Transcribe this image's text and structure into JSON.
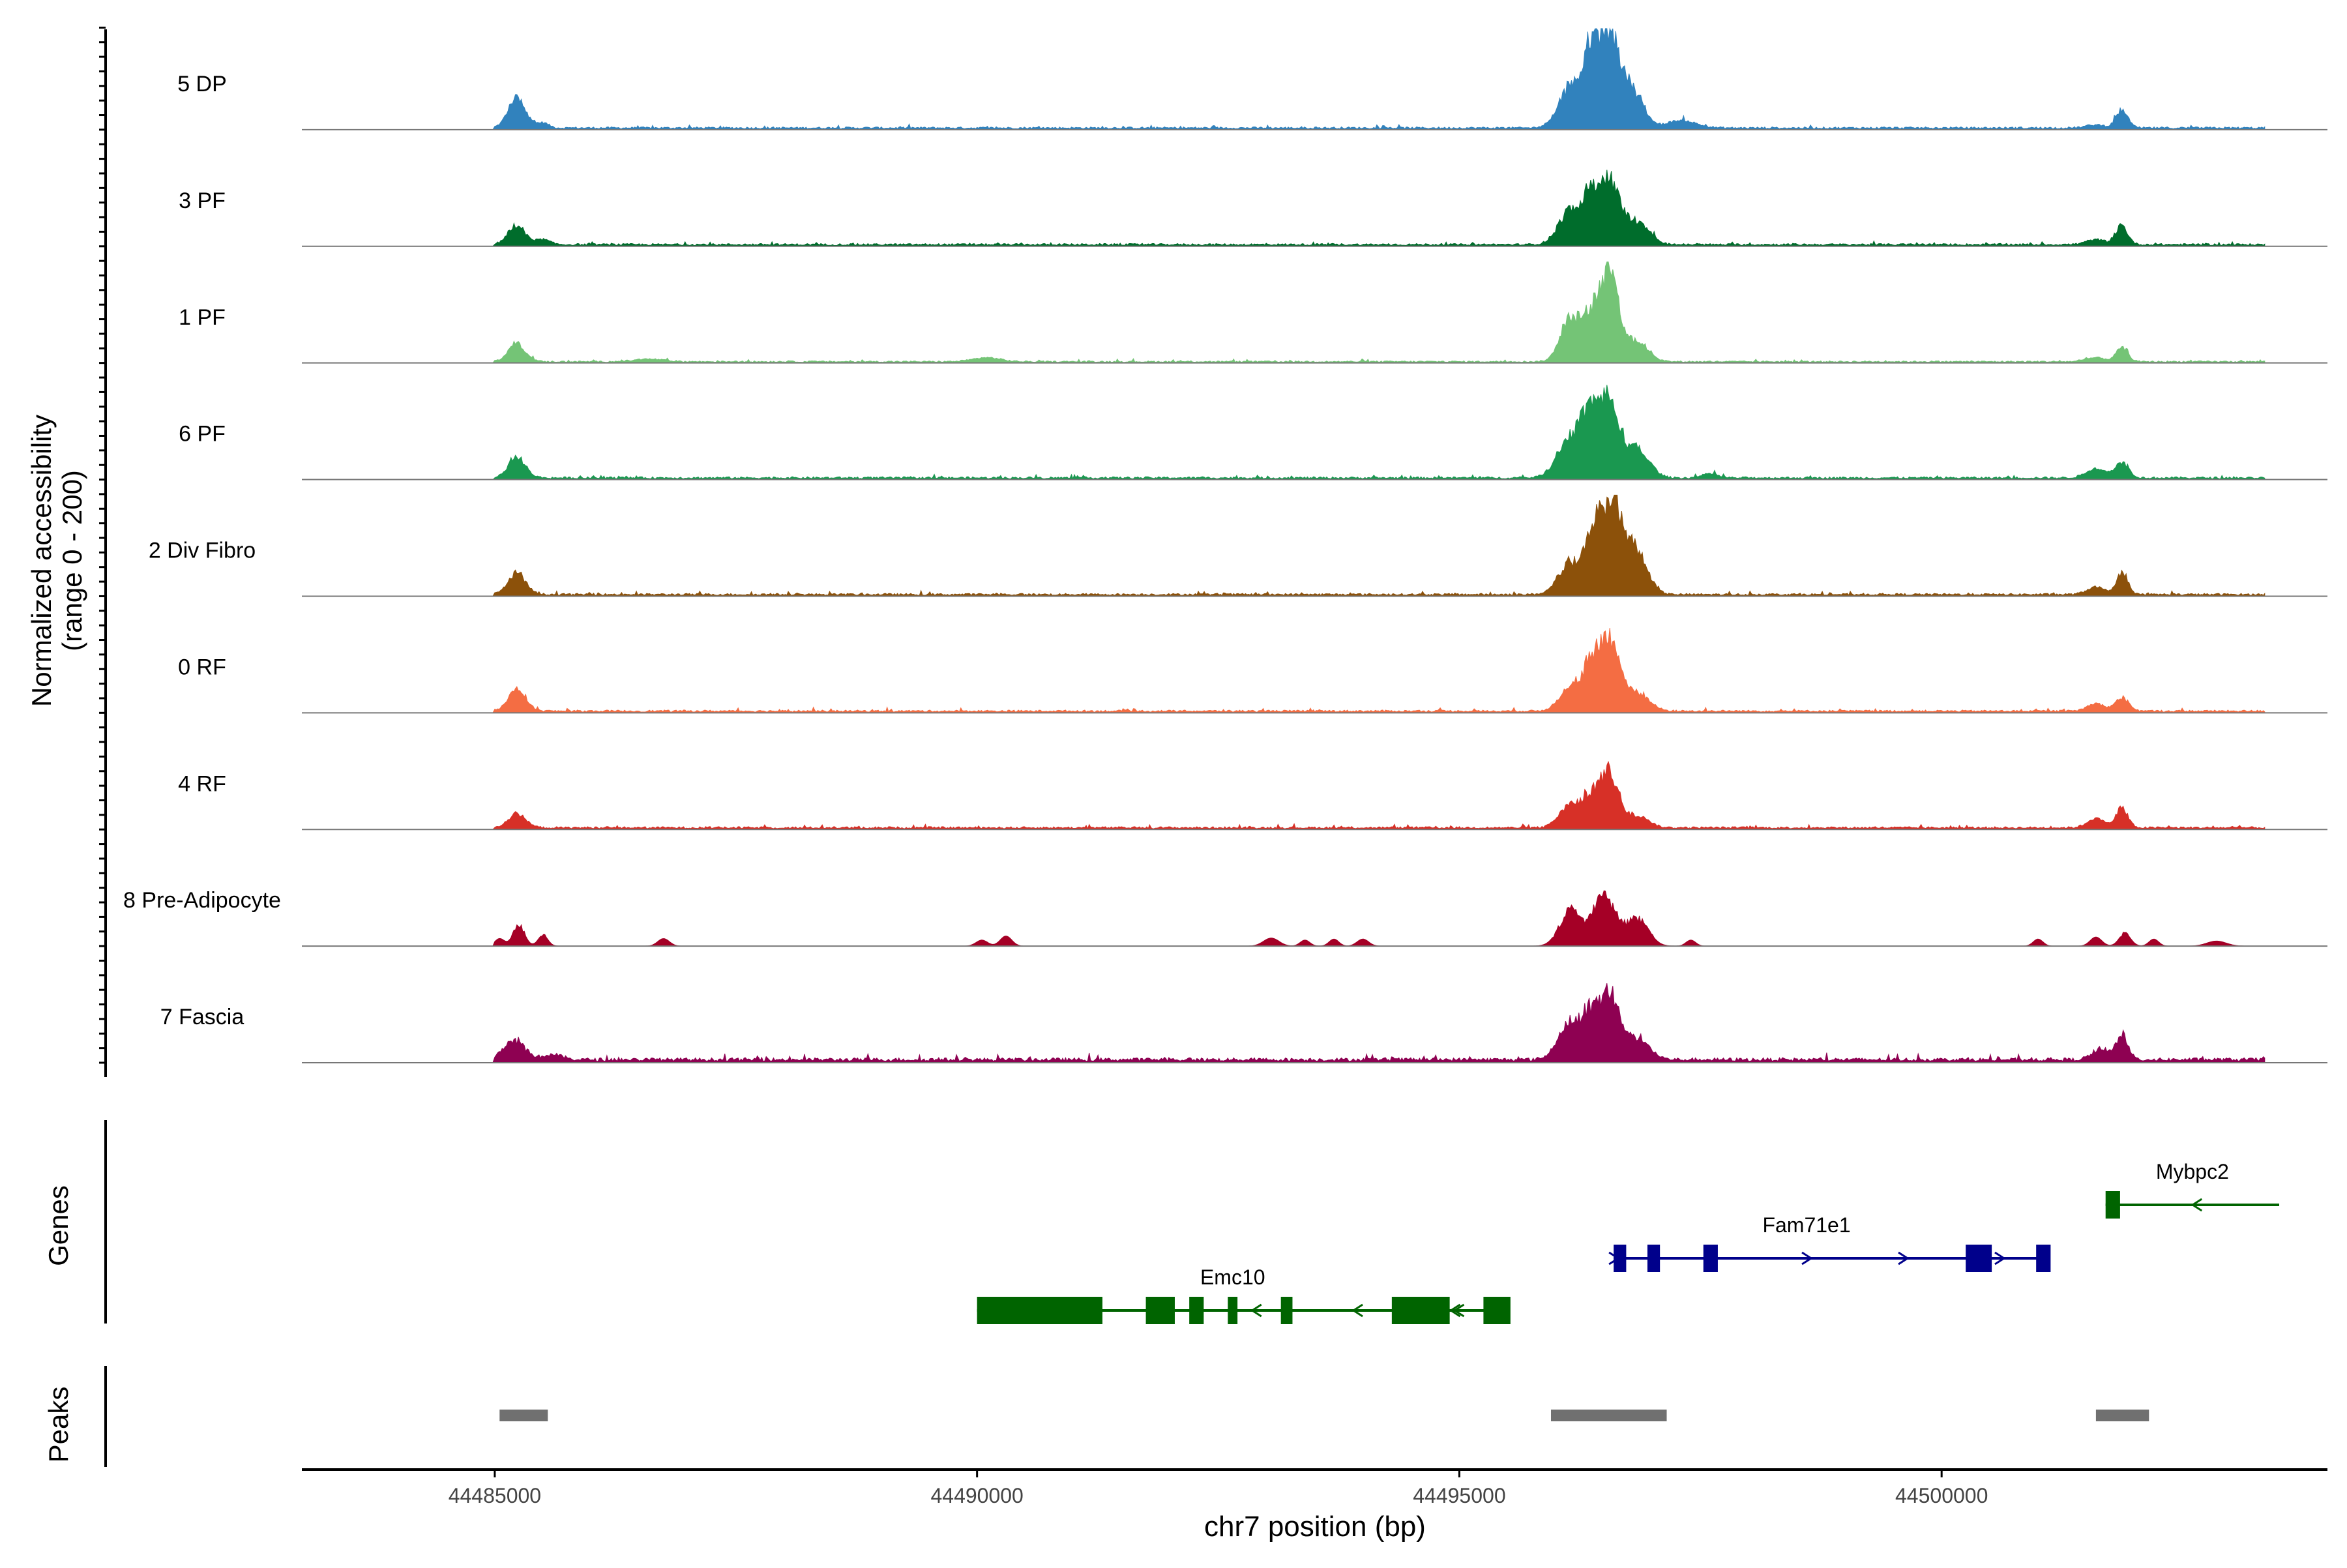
{
  "chart_data": {
    "type": "area",
    "title": "",
    "xlabel": "chr7 position (bp)",
    "ylabel": "Normalized accessibility",
    "ylabel_sub": "(range 0 - 200)",
    "xlim": [
      44483000,
      44504000
    ],
    "ylim": [
      0,
      200
    ],
    "xticks": [
      44485000,
      44490000,
      44495000,
      44500000
    ],
    "xtick_labels": [
      "44485000",
      "44490000",
      "44495000",
      "44500000"
    ],
    "panel_labels": {
      "genes": "Genes",
      "peaks": "Peaks"
    },
    "tracks": [
      {
        "name": "5 DP",
        "color": "#3182bd",
        "peaks": [
          [
            44485230,
            60,
            90
          ],
          [
            44485500,
            10,
            60
          ],
          [
            44496150,
            80,
            120
          ],
          [
            44496350,
            120,
            80
          ],
          [
            44496550,
            185,
            110
          ],
          [
            44496800,
            70,
            110
          ],
          [
            44497300,
            15,
            150
          ],
          [
            44501870,
            36,
            60
          ],
          [
            44501600,
            6,
            100
          ]
        ],
        "baseline_noise": 4
      },
      {
        "name": "3 PF",
        "color": "#006d2c",
        "peaks": [
          [
            44485230,
            38,
            90
          ],
          [
            44485500,
            10,
            70
          ],
          [
            44496150,
            65,
            120
          ],
          [
            44496350,
            80,
            80
          ],
          [
            44496550,
            125,
            110
          ],
          [
            44496850,
            45,
            120
          ],
          [
            44501870,
            38,
            60
          ],
          [
            44501600,
            10,
            100
          ]
        ],
        "baseline_noise": 4
      },
      {
        "name": "1 PF",
        "color": "#74c476",
        "peaks": [
          [
            44485230,
            35,
            90
          ],
          [
            44486600,
            5,
            150
          ],
          [
            44490100,
            8,
            140
          ],
          [
            44496150,
            90,
            100
          ],
          [
            44496350,
            70,
            80
          ],
          [
            44496550,
            180,
            100
          ],
          [
            44496850,
            40,
            110
          ],
          [
            44501870,
            28,
            60
          ],
          [
            44501600,
            8,
            100
          ]
        ],
        "baseline_noise": 3
      },
      {
        "name": "6 PF",
        "color": "#1a9850",
        "peaks": [
          [
            44485230,
            38,
            90
          ],
          [
            44496150,
            80,
            130
          ],
          [
            44496350,
            95,
            90
          ],
          [
            44496550,
            150,
            110
          ],
          [
            44496850,
            55,
            120
          ],
          [
            44497600,
            8,
            80
          ],
          [
            44501600,
            18,
            100
          ],
          [
            44501870,
            30,
            70
          ]
        ],
        "baseline_noise": 4
      },
      {
        "name": "2 Div Fibro",
        "color": "#8c510a",
        "peaks": [
          [
            44485230,
            42,
            90
          ],
          [
            44496150,
            60,
            120
          ],
          [
            44496400,
            110,
            90
          ],
          [
            44496600,
            175,
            110
          ],
          [
            44496850,
            75,
            110
          ],
          [
            44501600,
            15,
            90
          ],
          [
            44501870,
            40,
            60
          ]
        ],
        "baseline_noise": 4
      },
      {
        "name": "0 RF",
        "color": "#f46d43",
        "peaks": [
          [
            44485230,
            45,
            90
          ],
          [
            44496150,
            50,
            110
          ],
          [
            44496350,
            70,
            80
          ],
          [
            44496550,
            145,
            110
          ],
          [
            44496850,
            35,
            120
          ],
          [
            44501600,
            15,
            90
          ],
          [
            44501870,
            25,
            70
          ]
        ],
        "baseline_noise": 4
      },
      {
        "name": "4 RF",
        "color": "#d73027",
        "peaks": [
          [
            44485230,
            28,
            90
          ],
          [
            44496150,
            45,
            110
          ],
          [
            44496350,
            50,
            80
          ],
          [
            44496550,
            110,
            100
          ],
          [
            44496850,
            25,
            110
          ],
          [
            44501600,
            18,
            90
          ],
          [
            44501870,
            40,
            60
          ]
        ],
        "baseline_noise": 4
      },
      {
        "name": "8 Pre-Adipocyte",
        "color": "#a50026",
        "peaks": [
          [
            44485050,
            15,
            50
          ],
          [
            44485250,
            40,
            60
          ],
          [
            44485500,
            22,
            50
          ],
          [
            44486750,
            15,
            60
          ],
          [
            44490050,
            12,
            60
          ],
          [
            44490300,
            20,
            60
          ],
          [
            44493050,
            16,
            80
          ],
          [
            44493400,
            12,
            50
          ],
          [
            44493700,
            14,
            50
          ],
          [
            44494000,
            14,
            60
          ],
          [
            44496150,
            70,
            110
          ],
          [
            44496500,
            100,
            120
          ],
          [
            44496850,
            55,
            110
          ],
          [
            44497400,
            12,
            50
          ],
          [
            44501000,
            14,
            50
          ],
          [
            44501600,
            18,
            60
          ],
          [
            44501900,
            25,
            60
          ],
          [
            44502200,
            14,
            50
          ],
          [
            44502850,
            10,
            100
          ]
        ],
        "baseline_noise": 0
      },
      {
        "name": "7 Fascia",
        "color": "#8e0152",
        "peaks": [
          [
            44485200,
            38,
            110
          ],
          [
            44485600,
            10,
            100
          ],
          [
            44496150,
            75,
            120
          ],
          [
            44496350,
            60,
            80
          ],
          [
            44496550,
            130,
            110
          ],
          [
            44496850,
            40,
            120
          ],
          [
            44501650,
            20,
            90
          ],
          [
            44501870,
            50,
            60
          ]
        ],
        "baseline_noise": 7
      }
    ],
    "genes": [
      {
        "name": "Emc10",
        "strand": "-",
        "start": 44490000,
        "end": 44495500,
        "color": "#006400",
        "exons": [
          [
            44490000,
            44491300
          ],
          [
            44491750,
            44492050
          ],
          [
            44492200,
            44492350
          ],
          [
            44492600,
            44492700
          ],
          [
            44493150,
            44493270
          ],
          [
            44494300,
            44494900
          ],
          [
            44495250,
            44495530
          ]
        ],
        "arrows": [
          44492900,
          44493950,
          44494960,
          44495000
        ]
      },
      {
        "name": "Fam71e1",
        "strand": "+",
        "start": 44496600,
        "end": 44501100,
        "color": "#00008b",
        "exons": [
          [
            44496600,
            44496730
          ],
          [
            44496950,
            44497080
          ],
          [
            44497530,
            44497680
          ],
          [
            44500250,
            44500520
          ],
          [
            44500980,
            44501130
          ]
        ],
        "arrows": [
          44496600,
          44498600,
          44499600,
          44500600
        ]
      },
      {
        "name": "Mybpc2",
        "strand": "-",
        "start": 44501700,
        "end": 44503500,
        "color": "#006400",
        "exons": [
          [
            44501700,
            44501850
          ]
        ],
        "arrows": [
          44502650
        ]
      }
    ],
    "peak_regions": [
      [
        44485050,
        44485550
      ],
      [
        44495950,
        44497150
      ],
      [
        44501600,
        44502150
      ]
    ],
    "grid": false
  }
}
